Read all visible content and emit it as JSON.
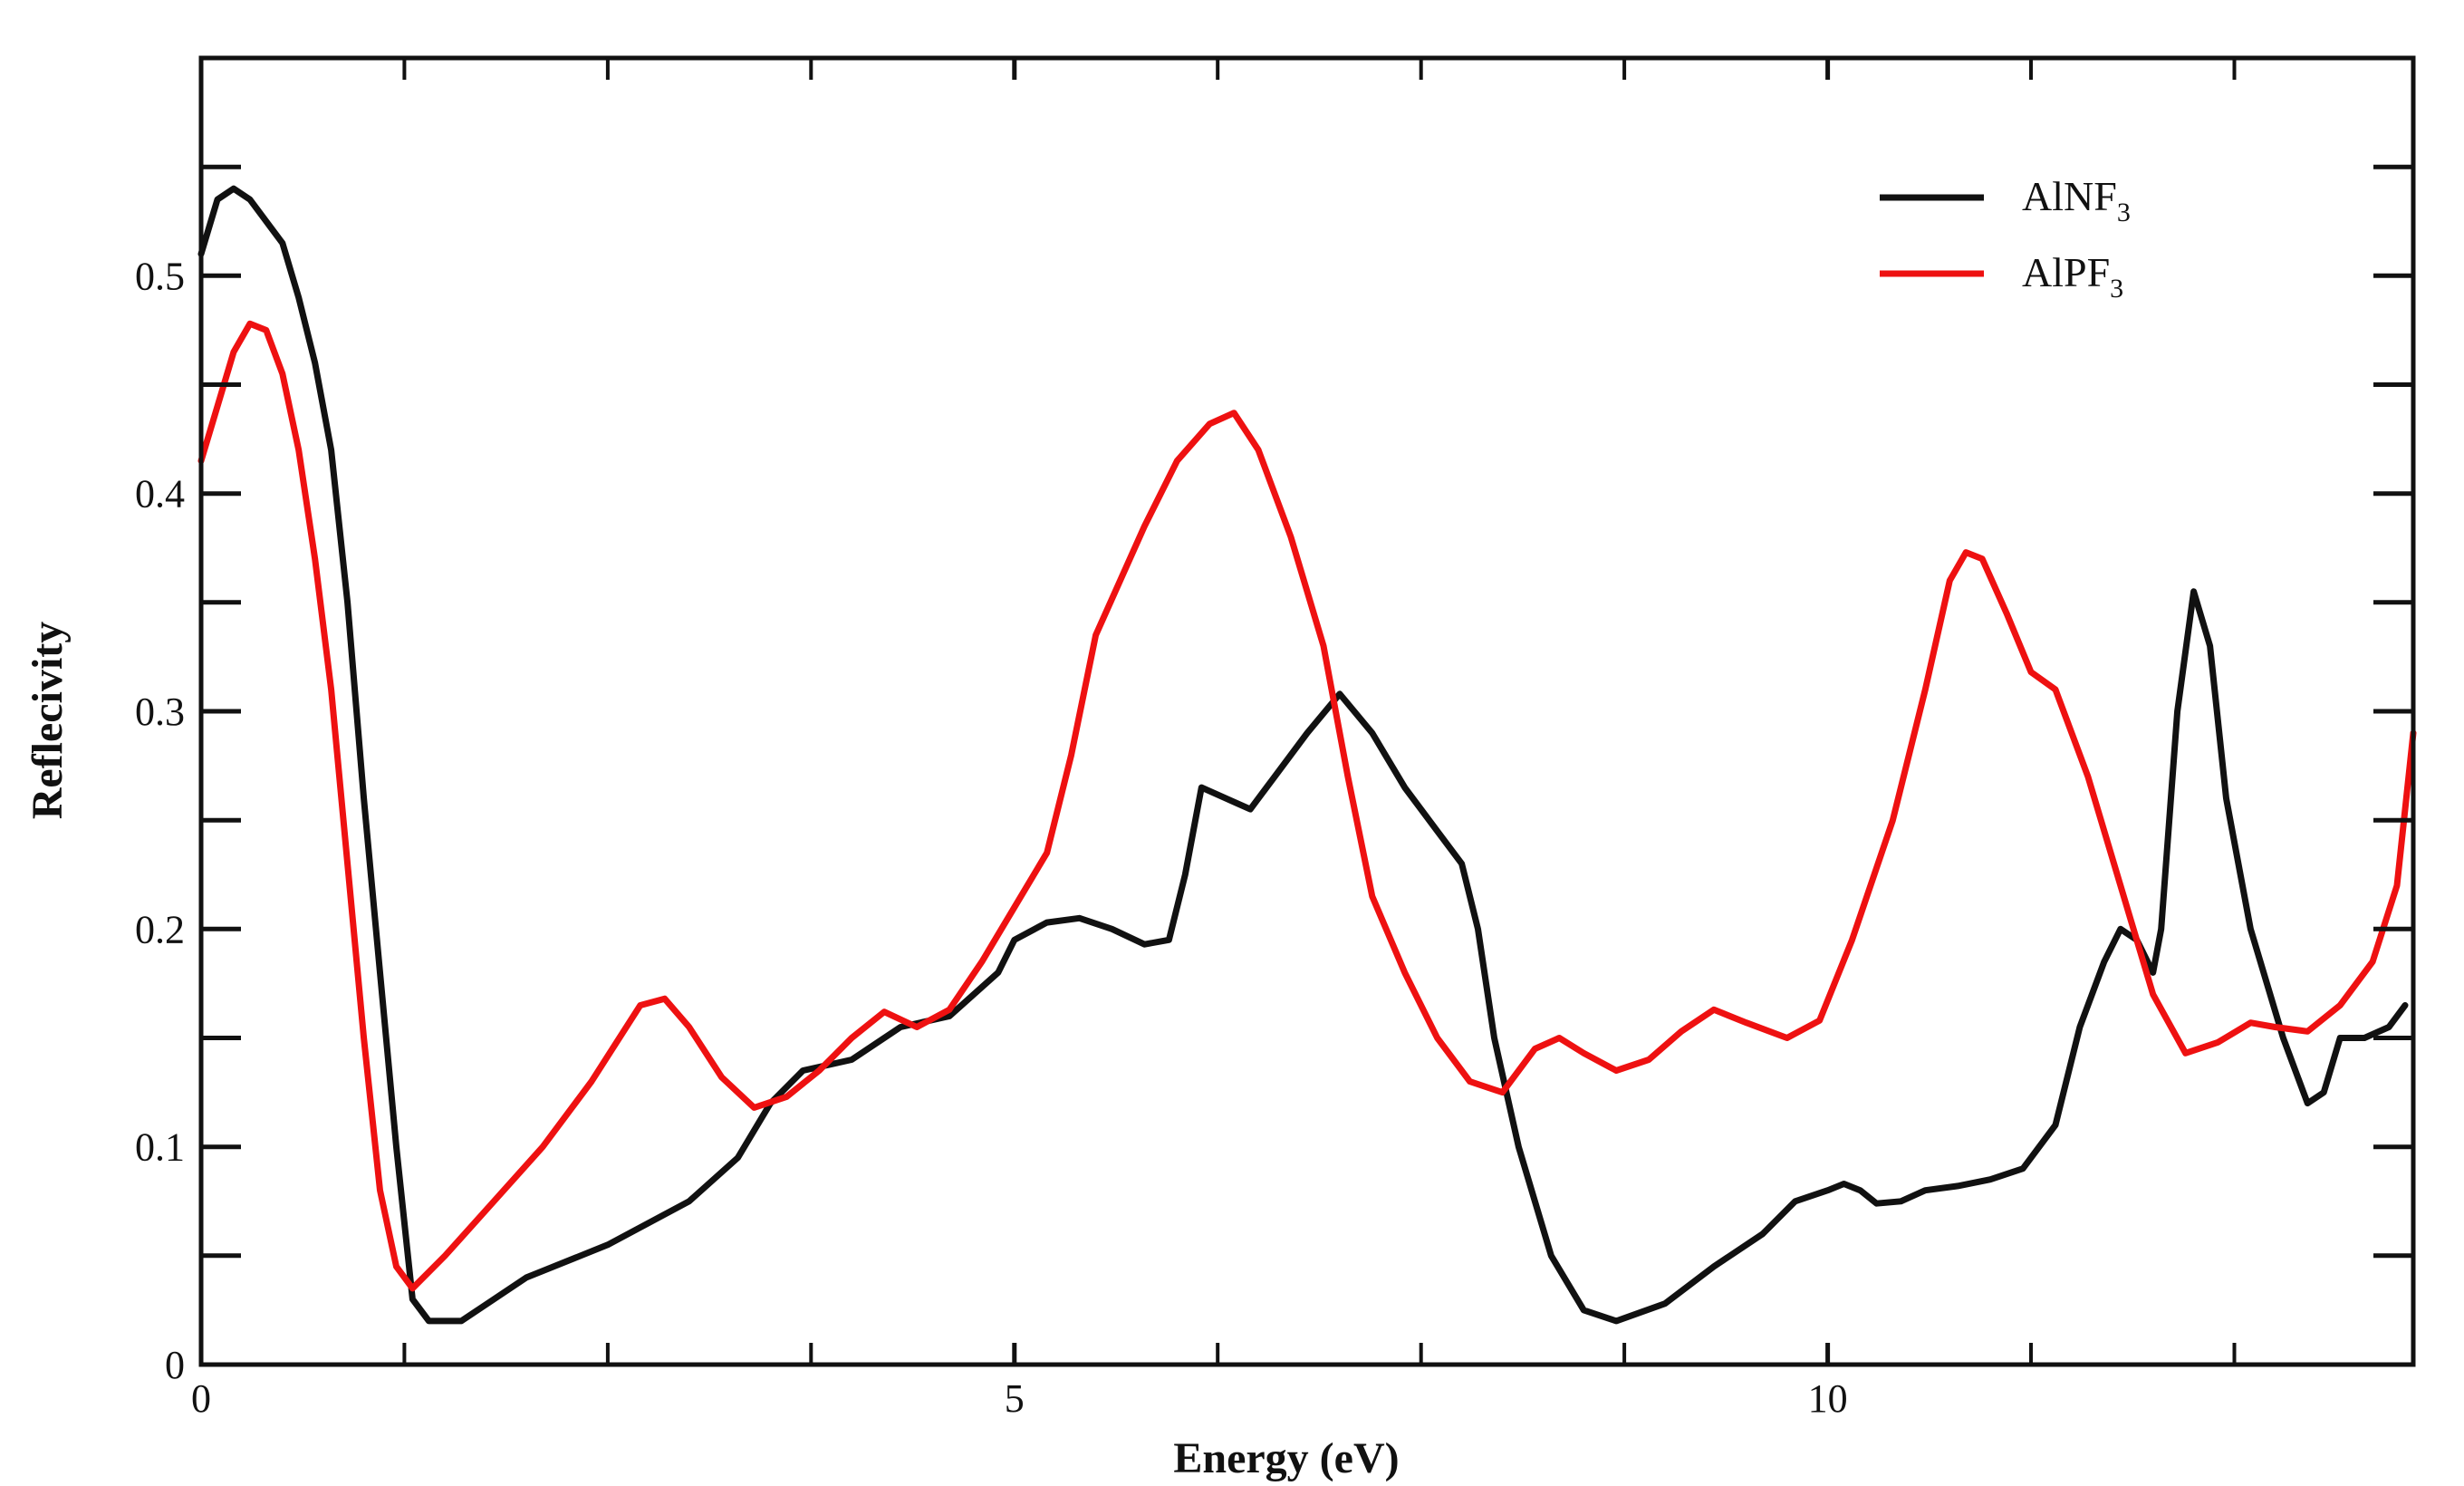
{
  "chart_data": {
    "type": "line",
    "title": "",
    "xlabel": "Energy (eV)",
    "ylabel": "Reflecivity",
    "xlim": [
      0,
      13.6
    ],
    "ylim": [
      0,
      0.6
    ],
    "x_major_ticks": [
      0,
      5,
      10
    ],
    "x_tick_labels": [
      "0",
      "5",
      "10"
    ],
    "x_minor_ticks": [
      1.25,
      2.5,
      3.75,
      6.25,
      7.5,
      8.75,
      11.25,
      12.5
    ],
    "y_ticks": [
      0,
      0.05,
      0.1,
      0.15,
      0.2,
      0.25,
      0.3,
      0.35,
      0.4,
      0.45,
      0.5,
      0.55
    ],
    "y_tick_labels": [
      {
        "value": 0,
        "label": "0"
      },
      {
        "value": 0.1,
        "label": "0.1"
      },
      {
        "value": 0.2,
        "label": "0.2"
      },
      {
        "value": 0.3,
        "label": "0.3"
      },
      {
        "value": 0.4,
        "label": "0.4"
      },
      {
        "value": 0.5,
        "label": "0.5"
      }
    ],
    "grid": false,
    "legend_position": "top-right",
    "series": [
      {
        "name": "AlNF3",
        "label_main": "AlNF",
        "label_sub": "3",
        "color": "#111111",
        "points": [
          [
            0.0,
            0.51
          ],
          [
            0.1,
            0.535
          ],
          [
            0.2,
            0.54
          ],
          [
            0.3,
            0.535
          ],
          [
            0.4,
            0.525
          ],
          [
            0.5,
            0.515
          ],
          [
            0.6,
            0.49
          ],
          [
            0.7,
            0.46
          ],
          [
            0.8,
            0.42
          ],
          [
            0.9,
            0.35
          ],
          [
            1.0,
            0.26
          ],
          [
            1.1,
            0.18
          ],
          [
            1.2,
            0.1
          ],
          [
            1.3,
            0.03
          ],
          [
            1.4,
            0.02
          ],
          [
            1.6,
            0.02
          ],
          [
            1.8,
            0.03
          ],
          [
            2.0,
            0.04
          ],
          [
            2.5,
            0.055
          ],
          [
            3.0,
            0.075
          ],
          [
            3.3,
            0.095
          ],
          [
            3.5,
            0.12
          ],
          [
            3.7,
            0.135
          ],
          [
            4.0,
            0.14
          ],
          [
            4.3,
            0.155
          ],
          [
            4.6,
            0.16
          ],
          [
            4.9,
            0.18
          ],
          [
            5.0,
            0.195
          ],
          [
            5.2,
            0.203
          ],
          [
            5.4,
            0.205
          ],
          [
            5.6,
            0.2
          ],
          [
            5.8,
            0.193
          ],
          [
            5.95,
            0.195
          ],
          [
            6.05,
            0.225
          ],
          [
            6.15,
            0.265
          ],
          [
            6.3,
            0.26
          ],
          [
            6.45,
            0.255
          ],
          [
            6.6,
            0.27
          ],
          [
            6.8,
            0.29
          ],
          [
            7.0,
            0.308
          ],
          [
            7.2,
            0.29
          ],
          [
            7.4,
            0.265
          ],
          [
            7.6,
            0.245
          ],
          [
            7.75,
            0.23
          ],
          [
            7.85,
            0.2
          ],
          [
            7.95,
            0.15
          ],
          [
            8.1,
            0.1
          ],
          [
            8.3,
            0.05
          ],
          [
            8.5,
            0.025
          ],
          [
            8.7,
            0.02
          ],
          [
            9.0,
            0.028
          ],
          [
            9.3,
            0.045
          ],
          [
            9.6,
            0.06
          ],
          [
            9.8,
            0.075
          ],
          [
            10.0,
            0.08
          ],
          [
            10.1,
            0.083
          ],
          [
            10.2,
            0.08
          ],
          [
            10.3,
            0.074
          ],
          [
            10.45,
            0.075
          ],
          [
            10.6,
            0.08
          ],
          [
            10.8,
            0.082
          ],
          [
            11.0,
            0.085
          ],
          [
            11.2,
            0.09
          ],
          [
            11.4,
            0.11
          ],
          [
            11.55,
            0.155
          ],
          [
            11.7,
            0.185
          ],
          [
            11.8,
            0.2
          ],
          [
            11.9,
            0.195
          ],
          [
            12.0,
            0.18
          ],
          [
            12.05,
            0.2
          ],
          [
            12.15,
            0.3
          ],
          [
            12.25,
            0.355
          ],
          [
            12.35,
            0.33
          ],
          [
            12.45,
            0.26
          ],
          [
            12.6,
            0.2
          ],
          [
            12.8,
            0.15
          ],
          [
            12.95,
            0.12
          ],
          [
            13.05,
            0.125
          ],
          [
            13.15,
            0.15
          ],
          [
            13.3,
            0.15
          ],
          [
            13.45,
            0.155
          ],
          [
            13.55,
            0.165
          ]
        ]
      },
      {
        "name": "AlPF3",
        "label_main": "AlPF",
        "label_sub": "3",
        "color": "#ee1111",
        "points": [
          [
            0.0,
            0.415
          ],
          [
            0.1,
            0.44
          ],
          [
            0.2,
            0.465
          ],
          [
            0.3,
            0.478
          ],
          [
            0.4,
            0.475
          ],
          [
            0.5,
            0.455
          ],
          [
            0.6,
            0.42
          ],
          [
            0.7,
            0.37
          ],
          [
            0.8,
            0.31
          ],
          [
            0.9,
            0.23
          ],
          [
            1.0,
            0.15
          ],
          [
            1.1,
            0.08
          ],
          [
            1.2,
            0.045
          ],
          [
            1.3,
            0.035
          ],
          [
            1.5,
            0.05
          ],
          [
            1.8,
            0.075
          ],
          [
            2.1,
            0.1
          ],
          [
            2.4,
            0.13
          ],
          [
            2.7,
            0.165
          ],
          [
            2.85,
            0.168
          ],
          [
            3.0,
            0.155
          ],
          [
            3.2,
            0.132
          ],
          [
            3.4,
            0.118
          ],
          [
            3.6,
            0.123
          ],
          [
            3.8,
            0.135
          ],
          [
            4.0,
            0.15
          ],
          [
            4.2,
            0.162
          ],
          [
            4.4,
            0.155
          ],
          [
            4.6,
            0.163
          ],
          [
            4.8,
            0.185
          ],
          [
            5.0,
            0.21
          ],
          [
            5.2,
            0.235
          ],
          [
            5.35,
            0.28
          ],
          [
            5.5,
            0.335
          ],
          [
            5.8,
            0.385
          ],
          [
            6.0,
            0.415
          ],
          [
            6.2,
            0.432
          ],
          [
            6.35,
            0.437
          ],
          [
            6.5,
            0.42
          ],
          [
            6.7,
            0.38
          ],
          [
            6.9,
            0.33
          ],
          [
            7.05,
            0.27
          ],
          [
            7.2,
            0.215
          ],
          [
            7.4,
            0.18
          ],
          [
            7.6,
            0.15
          ],
          [
            7.8,
            0.13
          ],
          [
            8.0,
            0.125
          ],
          [
            8.2,
            0.145
          ],
          [
            8.35,
            0.15
          ],
          [
            8.5,
            0.143
          ],
          [
            8.7,
            0.135
          ],
          [
            8.9,
            0.14
          ],
          [
            9.1,
            0.153
          ],
          [
            9.3,
            0.163
          ],
          [
            9.5,
            0.157
          ],
          [
            9.75,
            0.15
          ],
          [
            9.95,
            0.158
          ],
          [
            10.15,
            0.195
          ],
          [
            10.4,
            0.25
          ],
          [
            10.6,
            0.31
          ],
          [
            10.75,
            0.36
          ],
          [
            10.85,
            0.373
          ],
          [
            10.95,
            0.37
          ],
          [
            11.1,
            0.345
          ],
          [
            11.25,
            0.318
          ],
          [
            11.4,
            0.31
          ],
          [
            11.6,
            0.27
          ],
          [
            11.8,
            0.22
          ],
          [
            12.0,
            0.17
          ],
          [
            12.2,
            0.143
          ],
          [
            12.4,
            0.148
          ],
          [
            12.6,
            0.157
          ],
          [
            12.75,
            0.155
          ],
          [
            12.95,
            0.153
          ],
          [
            13.15,
            0.165
          ],
          [
            13.35,
            0.185
          ],
          [
            13.5,
            0.22
          ],
          [
            13.6,
            0.29
          ]
        ]
      }
    ]
  }
}
